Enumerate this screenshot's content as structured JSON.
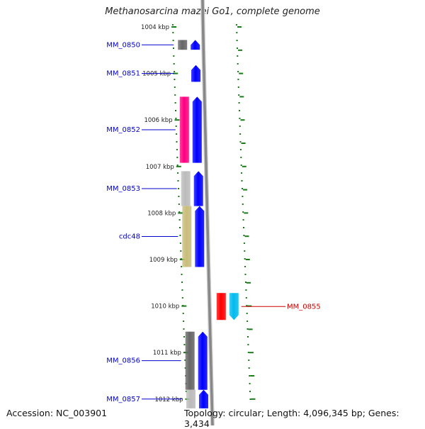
{
  "title": "Methanosarcina mazei Go1, complete genome",
  "accession": "Accession: NC_003901",
  "topology": "Topology: circular; Length: 4,096,345 bp; Genes: 3,434",
  "ruler": {
    "tick_labels": [
      "1004 kbp",
      "1005 kbp",
      "1006 kbp",
      "1007 kbp",
      "1008 kbp",
      "1009 kbp",
      "1010 kbp",
      "1011 kbp",
      "1012 kbp"
    ]
  },
  "genes": [
    {
      "label": "MM_0850",
      "label_color": "#0000cc",
      "strand": "left",
      "start_kb": 1004.28,
      "end_kb": 1004.49,
      "left_color": "#666666",
      "right_color": "#0000ff"
    },
    {
      "label": "MM_0851",
      "label_color": "#0000cc",
      "strand": "left",
      "start_kb": 1004.82,
      "end_kb": 1005.18,
      "left_color": "",
      "right_color": "#0000ff"
    },
    {
      "label": "MM_0852",
      "label_color": "#0000cc",
      "strand": "left",
      "start_kb": 1005.5,
      "end_kb": 1006.92,
      "left_color": "#ff0080",
      "right_color": "#0000ff"
    },
    {
      "label": "MM_0853",
      "label_color": "#0000cc",
      "strand": "left",
      "start_kb": 1007.1,
      "end_kb": 1007.85,
      "left_color": "#bbbbbb",
      "right_color": "#0000ff"
    },
    {
      "label": "cdc48",
      "label_color": "#0000cc",
      "strand": "left",
      "start_kb": 1007.85,
      "end_kb": 1009.16,
      "left_color": "#c8bd7a",
      "right_color": "#0000ff"
    },
    {
      "label": "MM_0855",
      "label_color": "#cc0000",
      "strand": "right",
      "start_kb": 1009.72,
      "end_kb": 1010.3,
      "left_color": "#ff0000",
      "right_color": "#00bbee"
    },
    {
      "label": "MM_0856",
      "label_color": "#0000cc",
      "strand": "left",
      "start_kb": 1010.55,
      "end_kb": 1011.8,
      "left_color": "#666666",
      "right_color": "#0000ff"
    },
    {
      "label": "MM_0857",
      "label_color": "#0000cc",
      "strand": "left",
      "start_kb": 1011.8,
      "end_kb": 1012.2,
      "left_color": "#bbbbbb",
      "right_color": "#0000ff"
    }
  ],
  "colors": {
    "backbone": "#888888",
    "dotted_track": "#1a7a1a",
    "tick": "#1a7a1a"
  }
}
